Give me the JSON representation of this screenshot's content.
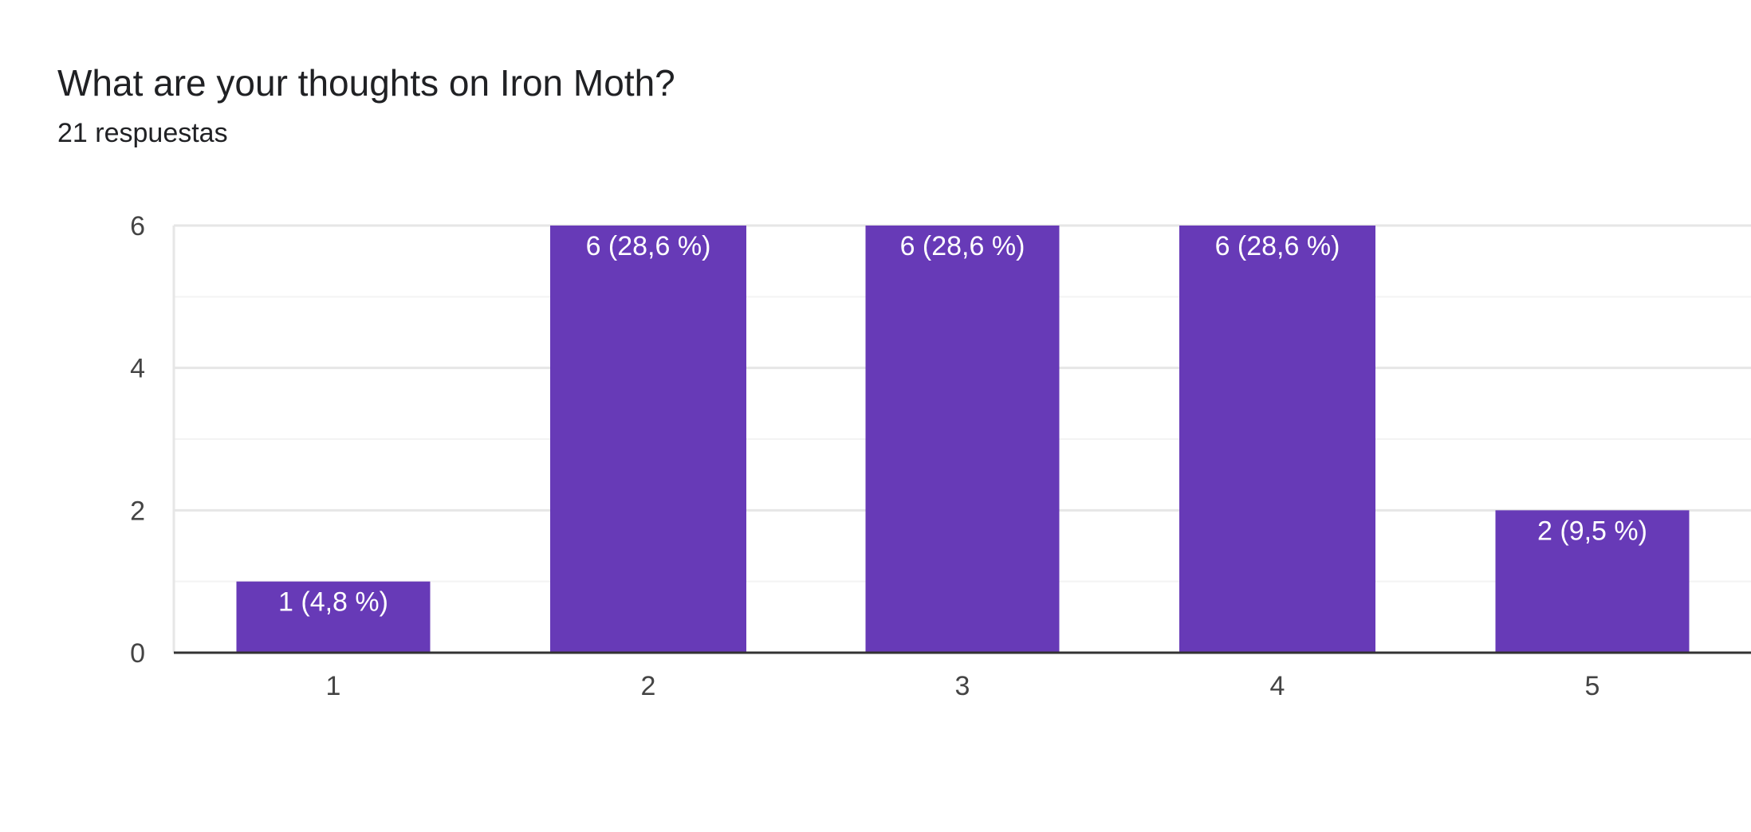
{
  "question": {
    "title": "What are your thoughts on Iron Moth?",
    "response_count": "21 respuestas"
  },
  "colors": {
    "bar": "#673ab7",
    "grid_major": "#e6e6e6",
    "grid_minor": "#f3f3f3",
    "baseline": "#333333"
  },
  "chart_data": {
    "type": "bar",
    "title": "What are your thoughts on Iron Moth?",
    "subtitle": "21 respuestas",
    "xlabel": "",
    "ylabel": "",
    "categories": [
      "1",
      "2",
      "3",
      "4",
      "5"
    ],
    "values": [
      1,
      6,
      6,
      6,
      2
    ],
    "data_labels": [
      "1 (4,8 %)",
      "6 (28,6 %)",
      "6 (28,6 %)",
      "6 (28,6 %)",
      "2 (9,5 %)"
    ],
    "ylim": [
      0,
      6
    ],
    "y_ticks": [
      "0",
      "2",
      "4",
      "6"
    ],
    "grid": true,
    "legend": "none"
  }
}
